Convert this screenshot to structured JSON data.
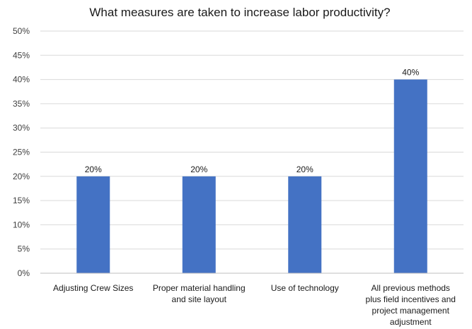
{
  "chart_data": {
    "type": "bar",
    "title": "What measures are taken to increase labor productivity?",
    "xlabel": "",
    "ylabel": "",
    "categories": [
      [
        "Adjusting Crew Sizes"
      ],
      [
        "Proper material handling",
        "and site layout"
      ],
      [
        "Use of technology"
      ],
      [
        "All previous methods",
        "plus field incentives and",
        "project management",
        "adjustment"
      ]
    ],
    "values": [
      20,
      20,
      20,
      40
    ],
    "data_labels": [
      "20%",
      "20%",
      "20%",
      "40%"
    ],
    "ylim": [
      0,
      50
    ],
    "yticks": [
      "0%",
      "5%",
      "10%",
      "15%",
      "20%",
      "25%",
      "30%",
      "35%",
      "40%",
      "45%",
      "50%"
    ],
    "grid": true,
    "legend": "none",
    "bar_color": "#4472C4"
  }
}
